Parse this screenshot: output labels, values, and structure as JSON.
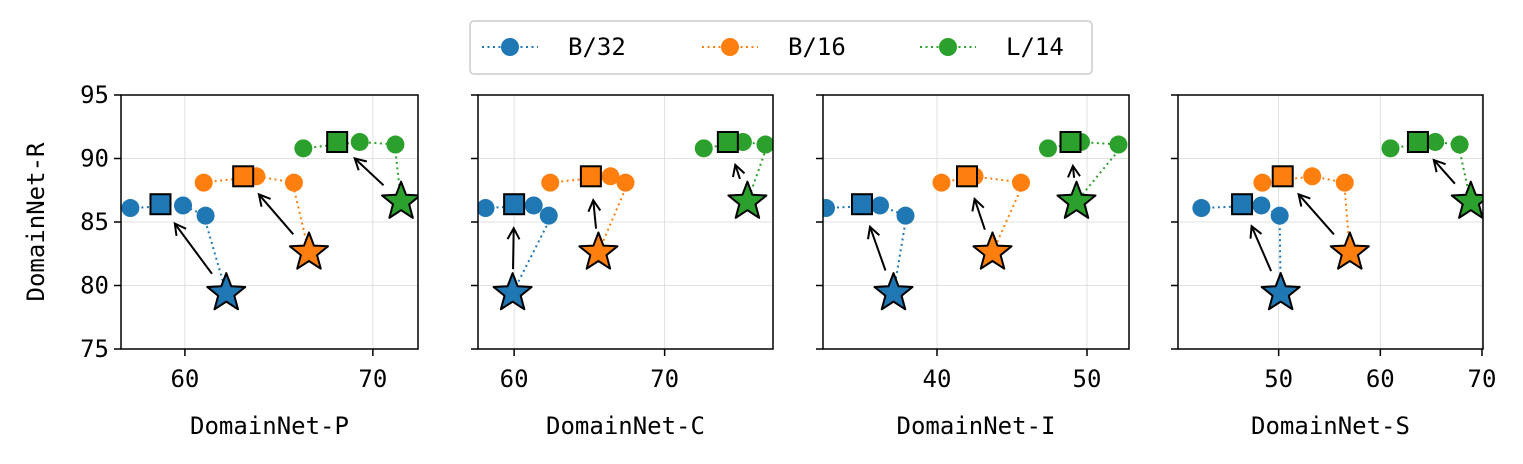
{
  "legend": {
    "entries": [
      {
        "label": "B/32",
        "color": "#1f77b4"
      },
      {
        "label": "B/16",
        "color": "#ff7f0e"
      },
      {
        "label": "L/14",
        "color": "#2ca02c"
      }
    ]
  },
  "chart_data": [
    {
      "type": "scatter",
      "xlabel": "DomainNet-P",
      "ylabel": "DomainNet-R",
      "xticks": [
        60,
        70
      ],
      "yticks": [
        75,
        80,
        85,
        90,
        95
      ],
      "xlim": [
        56.6,
        72.4
      ],
      "ylim": [
        75,
        95
      ],
      "grid": true,
      "series": [
        {
          "name": "B/32",
          "color": "#1f77b4",
          "dots": [
            [
              57.1,
              86.1
            ],
            [
              59.9,
              86.3
            ],
            [
              61.1,
              85.5
            ]
          ],
          "square": [
            58.7,
            86.4
          ],
          "star": [
            62.2,
            79.4
          ],
          "line_from_dot": 2
        },
        {
          "name": "B/16",
          "color": "#ff7f0e",
          "dots": [
            [
              61.0,
              88.1
            ],
            [
              63.8,
              88.6
            ],
            [
              65.8,
              88.1
            ]
          ],
          "square": [
            63.1,
            88.6
          ],
          "star": [
            66.6,
            82.6
          ],
          "line_from_dot": 2
        },
        {
          "name": "L/14",
          "color": "#2ca02c",
          "dots": [
            [
              66.3,
              90.8
            ],
            [
              69.3,
              91.3
            ],
            [
              71.2,
              91.1
            ]
          ],
          "square": [
            68.1,
            91.3
          ],
          "star": [
            71.5,
            86.6
          ],
          "line_from_dot": 2
        }
      ]
    },
    {
      "type": "scatter",
      "xlabel": "DomainNet-C",
      "ylabel": "",
      "xticks": [
        60,
        70
      ],
      "yticks": [
        75,
        80,
        85,
        90,
        95
      ],
      "xlim": [
        57.6,
        77.2
      ],
      "ylim": [
        75,
        95
      ],
      "grid": true,
      "series": [
        {
          "name": "B/32",
          "color": "#1f77b4",
          "dots": [
            [
              58.1,
              86.1
            ],
            [
              61.3,
              86.3
            ],
            [
              62.3,
              85.5
            ]
          ],
          "square": [
            60.0,
            86.4
          ],
          "star": [
            59.9,
            79.4
          ],
          "line_from_dot": 2
        },
        {
          "name": "B/16",
          "color": "#ff7f0e",
          "dots": [
            [
              62.4,
              88.1
            ],
            [
              66.4,
              88.6
            ],
            [
              67.4,
              88.1
            ]
          ],
          "square": [
            65.1,
            88.6
          ],
          "star": [
            65.6,
            82.6
          ],
          "line_from_dot": 2
        },
        {
          "name": "L/14",
          "color": "#2ca02c",
          "dots": [
            [
              72.6,
              90.8
            ],
            [
              75.2,
              91.3
            ],
            [
              76.7,
              91.1
            ]
          ],
          "square": [
            74.2,
            91.3
          ],
          "star": [
            75.5,
            86.6
          ],
          "line_from_dot": 2
        }
      ]
    },
    {
      "type": "scatter",
      "xlabel": "DomainNet-I",
      "ylabel": "",
      "xticks": [
        40,
        50
      ],
      "yticks": [
        75,
        80,
        85,
        90,
        95
      ],
      "xlim": [
        32.4,
        52.8
      ],
      "ylim": [
        75,
        95
      ],
      "grid": true,
      "series": [
        {
          "name": "B/32",
          "color": "#1f77b4",
          "dots": [
            [
              32.6,
              86.1
            ],
            [
              36.2,
              86.3
            ],
            [
              37.9,
              85.5
            ]
          ],
          "square": [
            35.0,
            86.4
          ],
          "star": [
            37.1,
            79.4
          ],
          "line_from_dot": 2
        },
        {
          "name": "B/16",
          "color": "#ff7f0e",
          "dots": [
            [
              40.3,
              88.1
            ],
            [
              42.5,
              88.6
            ],
            [
              45.6,
              88.1
            ]
          ],
          "square": [
            42.0,
            88.6
          ],
          "star": [
            43.7,
            82.6
          ],
          "line_from_dot": 2
        },
        {
          "name": "L/14",
          "color": "#2ca02c",
          "dots": [
            [
              47.4,
              90.8
            ],
            [
              49.6,
              91.3
            ],
            [
              52.1,
              91.1
            ]
          ],
          "square": [
            48.9,
            91.3
          ],
          "star": [
            49.3,
            86.6
          ],
          "line_from_dot": 2
        }
      ]
    },
    {
      "type": "scatter",
      "xlabel": "DomainNet-S",
      "ylabel": "",
      "xticks": [
        50,
        60,
        70
      ],
      "yticks": [
        75,
        80,
        85,
        90,
        95
      ],
      "xlim": [
        40.1,
        70.1
      ],
      "ylim": [
        75,
        95
      ],
      "grid": true,
      "series": [
        {
          "name": "B/32",
          "color": "#1f77b4",
          "dots": [
            [
              42.4,
              86.1
            ],
            [
              48.3,
              86.3
            ],
            [
              50.1,
              85.5
            ]
          ],
          "square": [
            46.4,
            86.4
          ],
          "star": [
            50.2,
            79.4
          ],
          "line_from_dot": 2
        },
        {
          "name": "B/16",
          "color": "#ff7f0e",
          "dots": [
            [
              48.4,
              88.1
            ],
            [
              53.3,
              88.6
            ],
            [
              56.5,
              88.1
            ]
          ],
          "square": [
            50.4,
            88.6
          ],
          "star": [
            57.0,
            82.6
          ],
          "line_from_dot": 2
        },
        {
          "name": "L/14",
          "color": "#2ca02c",
          "dots": [
            [
              61.0,
              90.8
            ],
            [
              65.4,
              91.3
            ],
            [
              67.8,
              91.1
            ]
          ],
          "square": [
            63.7,
            91.3
          ],
          "star": [
            68.9,
            86.6
          ],
          "line_from_dot": 2
        }
      ]
    }
  ]
}
